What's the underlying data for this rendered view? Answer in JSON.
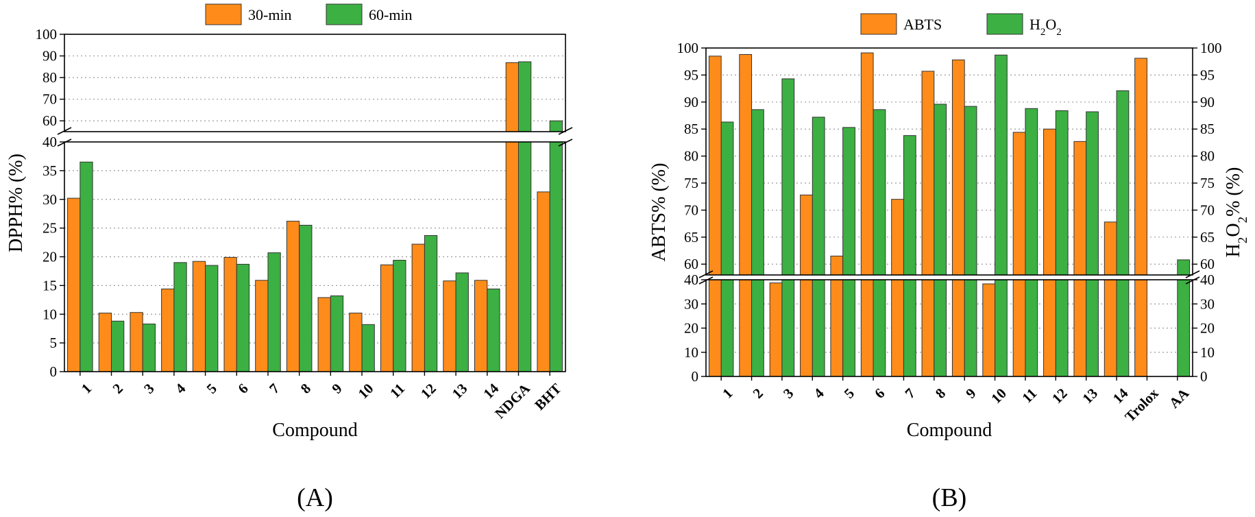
{
  "chart_data": [
    {
      "type": "bar",
      "panel_label": "(A)",
      "xlabel": "Compound",
      "ylabel": "DPPH% (%)",
      "categories": [
        "1",
        "2",
        "3",
        "4",
        "5",
        "6",
        "7",
        "8",
        "9",
        "10",
        "11",
        "12",
        "13",
        "14",
        "NDGA",
        "BHT"
      ],
      "series": [
        {
          "name": "30-min",
          "color": "#ff8c1a",
          "values": [
            30.2,
            10.2,
            10.3,
            14.4,
            19.2,
            19.9,
            15.9,
            26.2,
            12.9,
            10.2,
            18.6,
            22.2,
            15.8,
            15.9,
            86.9,
            31.3
          ]
        },
        {
          "name": "60-min",
          "color": "#3cb043",
          "values": [
            36.5,
            8.8,
            8.3,
            19.0,
            18.5,
            18.7,
            20.7,
            25.5,
            13.2,
            8.2,
            19.4,
            23.7,
            17.2,
            14.4,
            87.3,
            60.0
          ]
        }
      ],
      "axis_break": {
        "lower": [
          0,
          40
        ],
        "upper": [
          55,
          100
        ]
      },
      "yticks_lower": [
        0,
        5,
        10,
        15,
        20,
        25,
        30,
        35,
        40
      ],
      "yticks_upper": [
        60,
        70,
        80,
        90,
        100
      ],
      "grid": true,
      "legend_position": "top"
    },
    {
      "type": "bar",
      "panel_label": "(B)",
      "xlabel": "Compound",
      "ylabel": "ABTS% (%)",
      "ylabel_right": "H₂O₂% (%)",
      "categories": [
        "1",
        "2",
        "3",
        "4",
        "5",
        "6",
        "7",
        "8",
        "9",
        "10",
        "11",
        "12",
        "13",
        "14",
        "Trolox",
        "AA"
      ],
      "series": [
        {
          "name": "ABTS",
          "color": "#ff8c1a",
          "values": [
            98.5,
            98.8,
            38.7,
            72.8,
            61.5,
            99.1,
            72.0,
            95.7,
            97.8,
            38.3,
            84.4,
            85.0,
            82.7,
            67.8,
            98.1,
            null
          ]
        },
        {
          "name": "H₂O₂",
          "color": "#3cb043",
          "values": [
            86.3,
            88.6,
            94.3,
            87.2,
            85.3,
            88.6,
            83.8,
            89.6,
            89.2,
            98.7,
            88.8,
            88.4,
            88.2,
            92.1,
            null,
            60.8
          ]
        }
      ],
      "axis_break": {
        "lower": [
          0,
          40
        ],
        "upper": [
          58,
          100
        ]
      },
      "yticks_lower": [
        0,
        10,
        20,
        30,
        40
      ],
      "yticks_upper": [
        60,
        65,
        70,
        75,
        80,
        85,
        90,
        95,
        100
      ],
      "grid": true,
      "legend_position": "top"
    }
  ]
}
